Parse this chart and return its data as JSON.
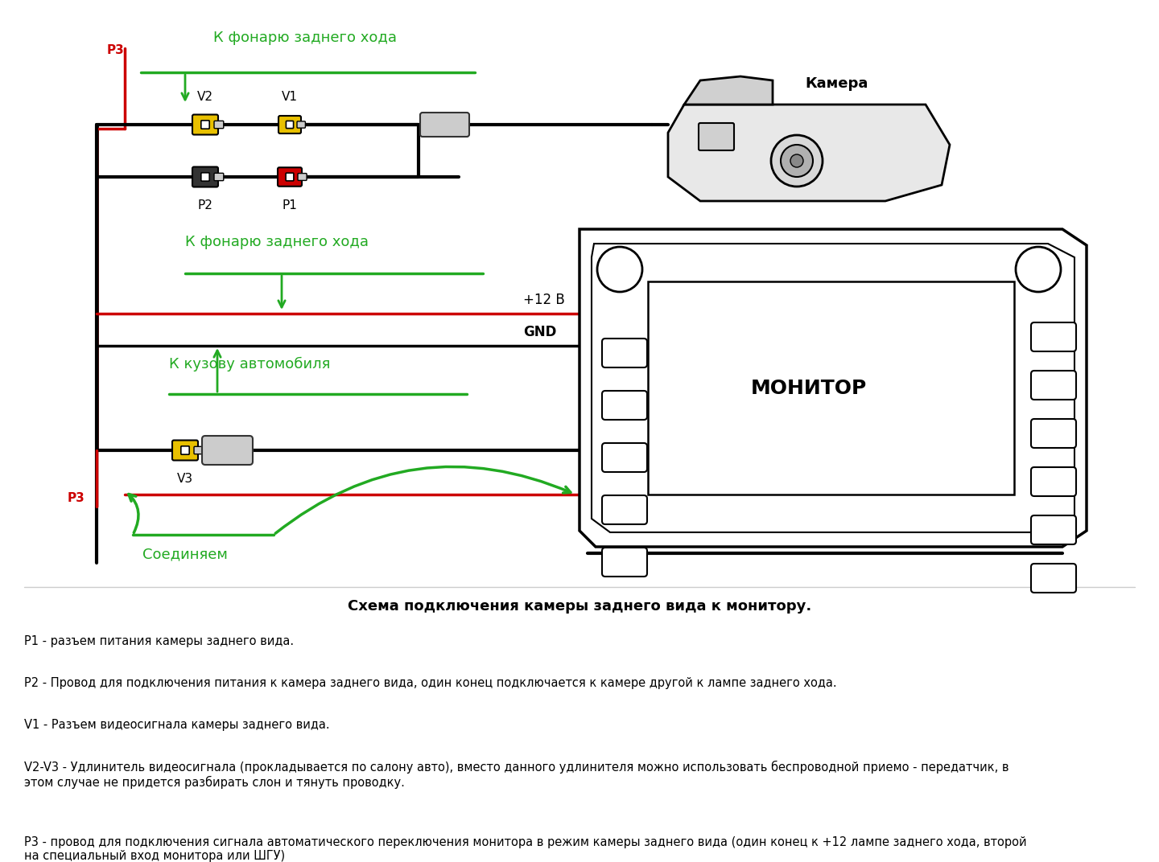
{
  "bg_color": "#ffffff",
  "title_diagram": "Схема подключения камеры заднего вида к монитору.",
  "label_camera": "Камера",
  "label_monitor": "МОНИТОР",
  "label_p3_top": "P3",
  "label_p2": "P2",
  "label_p1": "P1",
  "label_v2": "V2",
  "label_v1": "V1",
  "label_v3": "V3",
  "label_p3_bot": "P3",
  "label_k_fonaru1": "К фонарю заднего хода",
  "label_k_fonaru2": "К фонарю заднего хода",
  "label_k_kuzovu": "К кузову автомобиля",
  "label_12v": "+12 В",
  "label_gnd": "GND",
  "label_soedinyaem": "Соединяем",
  "text_p1": "P1 - разъем питания камеры заднего вида.",
  "text_p2": "P2 - Провод для подключения питания к камера заднего вида, один конец подключается к камере другой к лампе заднего хода.",
  "text_v1": "V1 - Разъем видеосигнала камеры заднего вида.",
  "text_v2v3": "V2-V3 - Удлинитель видеосигнала (прокладывается по салону авто), вместо данного удлинителя можно использовать беспроводной приемо - передатчик, в\nэтом случае не придется разбирать слон и тянуть проводку.",
  "text_p3": "Р3 - провод для подключения сигнала автоматического переключения монитора в режим камеры заднего вида (один конец к +12 лампе заднего хода, второй\nна специальный вход монитора или ШГУ)",
  "green": "#22aa22",
  "red": "#cc0000",
  "yellow": "#e8c000",
  "dark_gray": "#333333",
  "mid_gray": "#888888",
  "light_gray": "#cccccc",
  "black": "#000000",
  "wire_lw": 2.5,
  "thin_lw": 1.8
}
